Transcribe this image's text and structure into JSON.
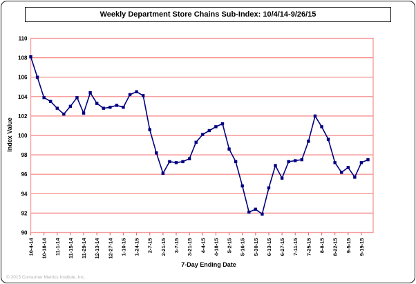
{
  "title": "Weekly Department Store Chains Sub-Index: 10/4/14-9/26/15",
  "footer": "© 2015 Consumer Metrics Institute, Inc.",
  "colors": {
    "line": "#000080",
    "gridline": "#f58080",
    "plot_border": "#f79d9d",
    "tick": "#e87070",
    "text": "#000000",
    "footer_text": "#b0b0b0"
  },
  "chart_data": {
    "type": "line",
    "title": "Weekly Department Store Chains Sub-Index: 10/4/14-9/26/15",
    "xlabel": "7-Day Ending Date",
    "ylabel": "Index Value",
    "ylim": [
      90,
      110
    ],
    "ytick_step": 2,
    "grid": "horizontal",
    "legend_position": "none",
    "marker": "square",
    "x_tick_labels": [
      "10-4-14",
      "10-18-14",
      "11-1-14",
      "11-15-14",
      "11-29-14",
      "12-13-14",
      "12-27-14",
      "1-10-15",
      "1-24-15",
      "2-7-15",
      "2-21-15",
      "3-7-15",
      "3-21-15",
      "4-4-15",
      "4-18-15",
      "5-2-15",
      "5-16-15",
      "5-30-15",
      "6-13-15",
      "6-27-15",
      "7-11-15",
      "7-25-15",
      "8-8-15",
      "8-22-15",
      "9-5-15",
      "9-19-15"
    ],
    "x": [
      "10-4-14",
      "10-11-14",
      "10-18-14",
      "10-25-14",
      "11-1-14",
      "11-8-14",
      "11-15-14",
      "11-22-14",
      "11-29-14",
      "12-6-14",
      "12-13-14",
      "12-20-14",
      "12-27-14",
      "1-3-15",
      "1-10-15",
      "1-17-15",
      "1-24-15",
      "1-31-15",
      "2-7-15",
      "2-14-15",
      "2-21-15",
      "2-28-15",
      "3-7-15",
      "3-14-15",
      "3-21-15",
      "3-28-15",
      "4-4-15",
      "4-11-15",
      "4-18-15",
      "4-25-15",
      "5-2-15",
      "5-9-15",
      "5-16-15",
      "5-23-15",
      "5-30-15",
      "6-6-15",
      "6-13-15",
      "6-20-15",
      "6-27-15",
      "7-4-15",
      "7-11-15",
      "7-18-15",
      "7-25-15",
      "8-1-15",
      "8-8-15",
      "8-15-15",
      "8-22-15",
      "8-29-15",
      "9-5-15",
      "9-12-15",
      "9-19-15",
      "9-26-15"
    ],
    "series": [
      {
        "name": "Department Store Chains Sub-Index",
        "values": [
          108.1,
          106.0,
          103.9,
          103.5,
          102.8,
          102.2,
          103.0,
          103.9,
          102.3,
          104.4,
          103.3,
          102.8,
          102.9,
          103.1,
          102.9,
          104.2,
          104.5,
          104.1,
          100.6,
          98.2,
          96.1,
          97.3,
          97.2,
          97.3,
          97.6,
          99.3,
          100.1,
          100.5,
          100.9,
          101.2,
          98.6,
          97.3,
          94.8,
          92.1,
          92.4,
          91.9,
          94.6,
          96.9,
          95.6,
          97.3,
          97.4,
          97.5,
          99.4,
          102.0,
          100.9,
          99.6,
          97.2,
          96.2,
          96.7,
          95.7,
          97.2,
          97.5
        ]
      }
    ]
  }
}
